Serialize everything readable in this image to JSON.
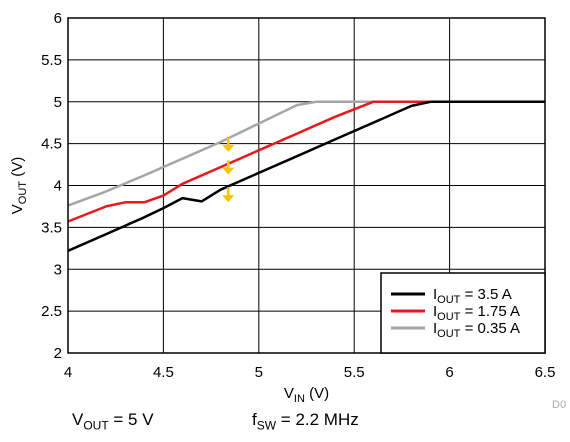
{
  "chart_data": {
    "type": "line",
    "xlabel": {
      "main": "V",
      "sub": "IN",
      "unit": " (V)"
    },
    "ylabel": {
      "main": "V",
      "sub": "OUT",
      "unit": " (V)"
    },
    "xlim": [
      4,
      6.5
    ],
    "ylim": [
      2,
      6
    ],
    "xticks": [
      "4",
      "4.5",
      "5",
      "5.5",
      "6",
      "6.5"
    ],
    "yticks": [
      "2",
      "2.5",
      "3",
      "3.5",
      "4",
      "4.5",
      "5",
      "5.5",
      "6"
    ],
    "grid": true,
    "legend_position": "bottom-right",
    "series": [
      {
        "name": "I_OUT = 3.5 A",
        "label_main": "I",
        "label_sub": "OUT",
        "label_value": " = 3.5 A",
        "color": "#000000",
        "x": [
          4.0,
          4.2,
          4.4,
          4.5,
          4.6,
          4.7,
          4.8,
          5.0,
          5.2,
          5.4,
          5.6,
          5.8,
          5.9,
          6.5
        ],
        "y": [
          3.22,
          3.42,
          3.62,
          3.73,
          3.85,
          3.81,
          3.95,
          4.15,
          4.35,
          4.55,
          4.75,
          4.95,
          5.0,
          5.0
        ]
      },
      {
        "name": "I_OUT = 1.75 A",
        "label_main": "I",
        "label_sub": "OUT",
        "label_value": " = 1.75 A",
        "color": "#e8191e",
        "x": [
          4.0,
          4.2,
          4.3,
          4.4,
          4.5,
          4.6,
          4.8,
          5.0,
          5.2,
          5.4,
          5.6,
          6.5
        ],
        "y": [
          3.57,
          3.75,
          3.8,
          3.8,
          3.88,
          4.02,
          4.22,
          4.42,
          4.62,
          4.82,
          5.0,
          5.0
        ]
      },
      {
        "name": "I_OUT = 0.35 A",
        "label_main": "I",
        "label_sub": "OUT",
        "label_value": " = 0.35 A",
        "color": "#a6a6a6",
        "x": [
          4.0,
          4.2,
          4.4,
          4.6,
          4.8,
          5.0,
          5.2,
          5.3,
          6.5
        ],
        "y": [
          3.76,
          3.93,
          4.12,
          4.32,
          4.52,
          4.74,
          4.96,
          5.0,
          5.0
        ]
      }
    ],
    "annotations": {
      "arrows": [
        {
          "x": 4.84,
          "y_from": 4.58,
          "y_to": 4.4
        },
        {
          "x": 4.84,
          "y_from": 4.3,
          "y_to": 4.13
        },
        {
          "x": 4.84,
          "y_from": 3.98,
          "y_to": 3.8
        }
      ],
      "arrow_color": "#f5c400"
    }
  },
  "conditions": {
    "vout": {
      "main": "V",
      "sub": "OUT",
      "rest": " = 5 V"
    },
    "fsw": {
      "main": "f",
      "sub": "SW",
      "rest": " = 2.2 MHz"
    }
  },
  "watermark": "D0"
}
